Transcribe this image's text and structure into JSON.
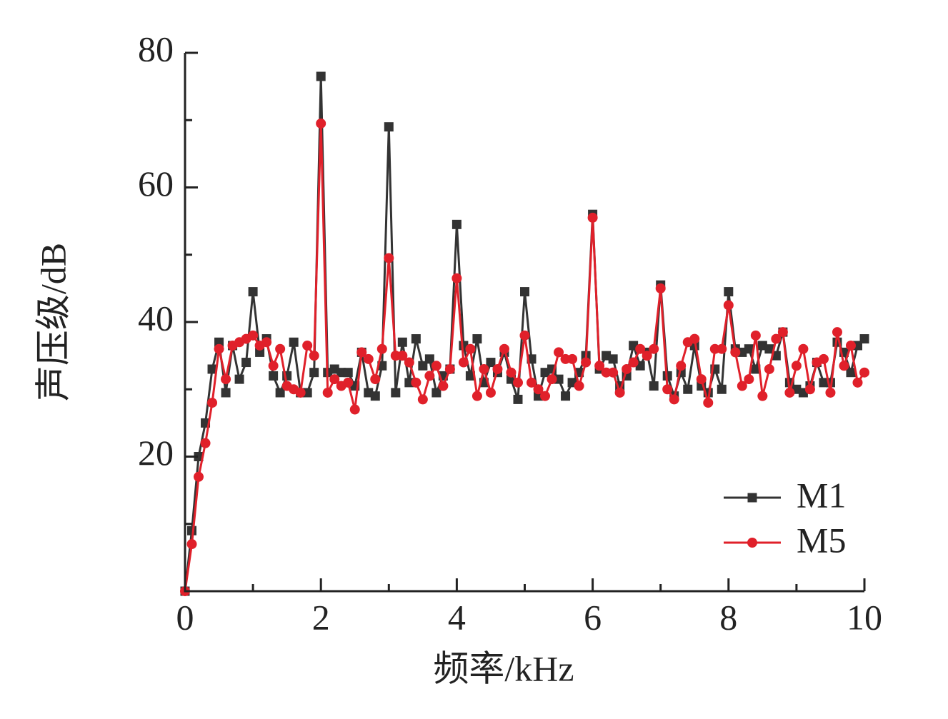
{
  "chart_data": {
    "type": "line",
    "xlabel": "频率/kHz",
    "ylabel": "声压级/dB",
    "x": [
      0,
      0.1,
      0.2,
      0.3,
      0.4,
      0.5,
      0.6,
      0.7,
      0.8,
      0.9,
      1,
      1.1,
      1.2,
      1.3,
      1.4,
      1.5,
      1.6,
      1.7,
      1.8,
      1.9,
      2,
      2.1,
      2.2,
      2.3,
      2.4,
      2.5,
      2.6,
      2.7,
      2.8,
      2.9,
      3,
      3.1,
      3.2,
      3.3,
      3.4,
      3.5,
      3.6,
      3.7,
      3.8,
      3.9,
      4,
      4.1,
      4.2,
      4.3,
      4.4,
      4.5,
      4.6,
      4.7,
      4.8,
      4.9,
      5,
      5.1,
      5.2,
      5.3,
      5.4,
      5.5,
      5.6,
      5.7,
      5.8,
      5.9,
      6,
      6.1,
      6.2,
      6.3,
      6.4,
      6.5,
      6.6,
      6.7,
      6.8,
      6.9,
      7,
      7.1,
      7.2,
      7.3,
      7.4,
      7.5,
      7.6,
      7.7,
      7.8,
      7.9,
      8,
      8.1,
      8.2,
      8.3,
      8.4,
      8.5,
      8.6,
      8.7,
      8.8,
      8.9,
      9,
      9.1,
      9.2,
      9.3,
      9.4,
      9.5,
      9.6,
      9.7,
      9.8,
      9.9,
      10
    ],
    "series": [
      {
        "name": "M1",
        "color": "#333333",
        "marker": "square",
        "values": [
          0,
          9,
          20,
          25,
          33,
          37,
          29.5,
          36.5,
          31.5,
          34,
          44.5,
          35.5,
          37.5,
          32,
          29.5,
          32,
          37,
          29.5,
          29.5,
          32.5,
          76.5,
          32.5,
          33,
          32.5,
          32.5,
          30.5,
          35.5,
          29.5,
          29,
          33.5,
          69,
          29.5,
          37,
          31,
          37.5,
          33.5,
          34.5,
          29.5,
          32,
          33,
          54.5,
          36.5,
          32,
          37.5,
          31,
          34,
          32.5,
          35.5,
          31.5,
          28.5,
          44.5,
          34.5,
          29,
          32.5,
          33,
          31.5,
          29,
          31,
          32.5,
          35,
          56,
          33,
          35,
          34.5,
          30.5,
          32,
          36.5,
          33.5,
          35.5,
          30.5,
          45.5,
          32,
          29,
          32.5,
          30,
          36.5,
          30.5,
          29.5,
          33,
          30,
          44.5,
          36,
          35.5,
          36,
          33,
          36.5,
          36,
          35,
          38.5,
          31,
          30,
          29.5,
          30.5,
          34,
          31,
          31,
          37,
          35.5,
          32.5,
          36.5,
          37.5
        ]
      },
      {
        "name": "M5",
        "color": "#e0202a",
        "marker": "circle",
        "values": [
          0,
          7,
          17,
          22,
          28,
          36,
          31.5,
          36.5,
          37,
          37.5,
          38,
          36.5,
          37,
          33.5,
          36,
          30.5,
          30,
          29.5,
          36.5,
          35,
          69.5,
          29.5,
          31.5,
          30.5,
          31,
          27,
          35.5,
          34.5,
          31.5,
          36,
          49.5,
          35,
          35,
          34,
          31,
          28.5,
          32,
          33.5,
          30.5,
          33,
          46.5,
          34,
          36,
          29,
          33,
          29.5,
          33,
          36,
          32.5,
          31,
          38,
          31,
          30,
          29,
          31.5,
          35.5,
          34.5,
          34.5,
          30.5,
          34,
          55.5,
          33.5,
          32.5,
          32.5,
          29.5,
          33,
          34,
          36,
          35,
          36,
          45,
          30,
          28.5,
          33.5,
          37,
          37.5,
          31.5,
          28,
          36,
          36,
          42.5,
          35.5,
          30.5,
          31.5,
          38,
          29,
          33,
          37.5,
          38.5,
          29.5,
          33.5,
          36,
          30,
          34,
          34.5,
          29.5,
          38.5,
          33.5,
          36.5,
          31,
          32.5
        ]
      }
    ],
    "xlim": [
      0,
      10
    ],
    "xticks": [
      0,
      2,
      4,
      6,
      8,
      10
    ],
    "ylim": [
      0,
      80
    ],
    "yticks": [
      20,
      40,
      60,
      80
    ],
    "legend": "lower right"
  }
}
